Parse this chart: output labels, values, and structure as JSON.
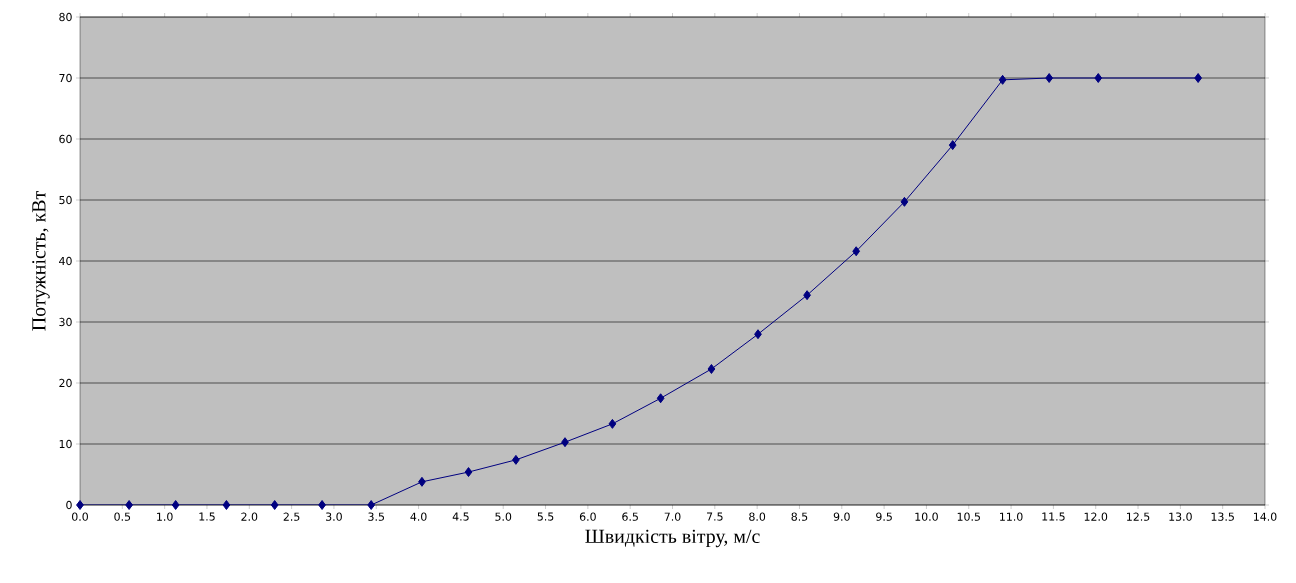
{
  "chart_data": {
    "type": "line",
    "xlabel": "Швидкість вітру, м/с",
    "ylabel": "Потужність, кВт",
    "x": [
      0,
      0.58,
      1.13,
      1.73,
      2.3,
      2.86,
      3.44,
      4.04,
      4.59,
      5.15,
      5.73,
      6.29,
      6.86,
      7.46,
      8.01,
      8.59,
      9.17,
      9.74,
      10.31,
      10.9,
      11.45,
      12.03,
      13.21
    ],
    "series": [
      {
        "color": "#000080",
        "values": [
          0,
          0,
          0,
          0,
          0,
          0,
          0,
          3.8,
          5.4,
          7.4,
          10.3,
          13.3,
          17.5,
          22.3,
          28,
          34.4,
          41.6,
          49.7,
          59,
          69.7,
          70,
          70,
          70
        ]
      }
    ],
    "xlim": [
      0,
      14
    ],
    "ylim": [
      0,
      80
    ],
    "xticks": [
      {
        "value": 0,
        "label": "0.0"
      },
      {
        "value": 0.5,
        "label": "0.5"
      },
      {
        "value": 1,
        "label": "1.0"
      },
      {
        "value": 1.5,
        "label": "1.5"
      },
      {
        "value": 2,
        "label": "2.0"
      },
      {
        "value": 2.5,
        "label": "2.5"
      },
      {
        "value": 3,
        "label": "3.0"
      },
      {
        "value": 3.5,
        "label": "3.5"
      },
      {
        "value": 4,
        "label": "4.0"
      },
      {
        "value": 4.5,
        "label": "4.5"
      },
      {
        "value": 5,
        "label": "5.0"
      },
      {
        "value": 5.5,
        "label": "5.5"
      },
      {
        "value": 6,
        "label": "6.0"
      },
      {
        "value": 6.5,
        "label": "6.5"
      },
      {
        "value": 7,
        "label": "7.0"
      },
      {
        "value": 7.5,
        "label": "7.5"
      },
      {
        "value": 8,
        "label": "8.0"
      },
      {
        "value": 8.5,
        "label": "8.5"
      },
      {
        "value": 9,
        "label": "9.0"
      },
      {
        "value": 9.5,
        "label": "9.5"
      },
      {
        "value": 10,
        "label": "10.0"
      },
      {
        "value": 10.5,
        "label": "10.5"
      },
      {
        "value": 11,
        "label": "11.0"
      },
      {
        "value": 11.5,
        "label": "11.5"
      },
      {
        "value": 12,
        "label": "12.0"
      },
      {
        "value": 12.5,
        "label": "12.5"
      },
      {
        "value": 13,
        "label": "13.0"
      },
      {
        "value": 13.5,
        "label": "13.5"
      },
      {
        "value": 14,
        "label": "14.0"
      }
    ],
    "yticks": [
      0,
      10,
      20,
      30,
      40,
      50,
      60,
      70,
      80
    ],
    "grid": "y",
    "marker": "diamond",
    "line_style": "solid"
  }
}
